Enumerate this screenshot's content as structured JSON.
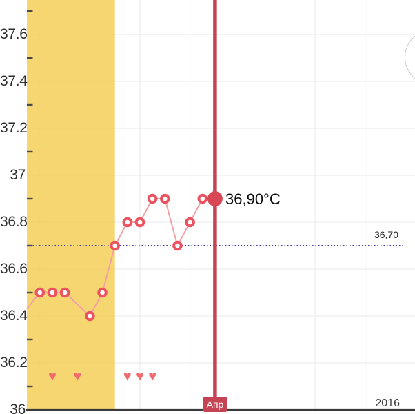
{
  "chart_data": {
    "type": "line",
    "title": "",
    "x_unit": "day",
    "y_unit": "°C",
    "ylim": [
      36.0,
      37.75
    ],
    "grid": true,
    "y_major_ticks": [
      {
        "value": 36.0,
        "label": "36"
      },
      {
        "value": 36.2,
        "label": "36.2"
      },
      {
        "value": 36.4,
        "label": "36.4"
      },
      {
        "value": 36.6,
        "label": "36.6"
      },
      {
        "value": 36.8,
        "label": "36.8"
      },
      {
        "value": 37.0,
        "label": "37"
      },
      {
        "value": 37.2,
        "label": "37.2"
      },
      {
        "value": 37.4,
        "label": "37.4"
      },
      {
        "value": 37.6,
        "label": "37.6"
      }
    ],
    "y_minor_tick_values": [
      36.1,
      36.3,
      36.5,
      36.7,
      36.9,
      37.1,
      37.3,
      37.5,
      37.7
    ],
    "x_gridline_days": [
      0,
      4,
      8,
      12,
      18,
      22,
      26
    ],
    "temperatures_by_day": [
      36.5,
      36.5,
      36.5,
      null,
      36.4,
      36.5,
      36.7,
      36.8,
      36.8,
      36.9,
      36.9,
      36.7,
      36.8,
      36.9,
      36.9
    ],
    "lead_in_temperature": 36.43,
    "selected_day": 14,
    "selected_temperature": 36.9,
    "selected_value_label": "36,90°C",
    "coverline_value": 36.7,
    "coverline_label": "36,70",
    "intercourse_marker_days": [
      1,
      3,
      7,
      8,
      9
    ],
    "highlight_band": {
      "start_day": -1.05,
      "end_day": 6.0
    },
    "cursor_day": 14,
    "x_axis_month_label": "Апр",
    "x_axis_year_label": "2016"
  },
  "colors": {
    "highlight_band": "#f3cf58",
    "grid": "#e9e9e9",
    "tick": "#4a4a4a",
    "axis_line": "#3a3a3a",
    "axis_label": "#2e2e2e",
    "series_line": "#f2a0a6",
    "marker": "#ec5360",
    "selected_point": "#d84754",
    "cursor_line": "#c64353",
    "heart": "#f16a6e",
    "coverline": "#3737b2",
    "value_label": "#0c0c0c",
    "ghost_circle": "#c9c9c9"
  }
}
